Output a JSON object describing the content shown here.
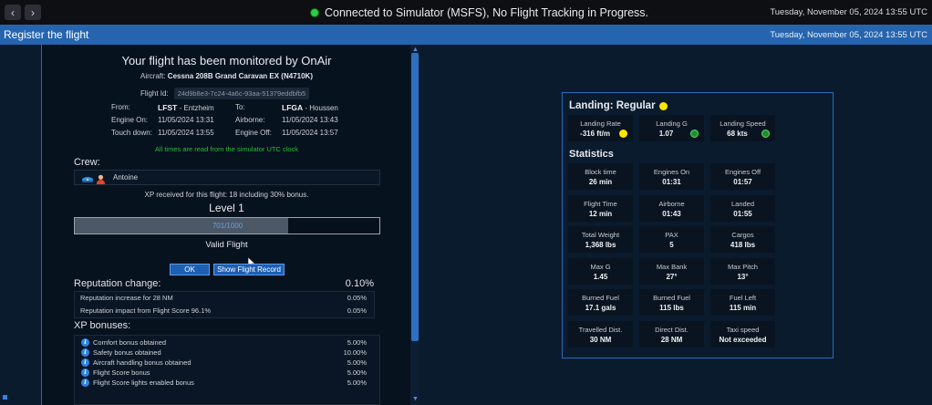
{
  "titlebar": {
    "connection_status": "Connected to Simulator (MSFS), No Flight Tracking in Progress.",
    "datetime": "Tuesday, November 05, 2024 13:55 UTC",
    "status_color": "#2ecc40"
  },
  "header": {
    "title": "Register the flight",
    "datetime": "Tuesday, November 05, 2024 13:55 UTC"
  },
  "report": {
    "heading": "Your flight has been monitored by OnAir",
    "aircraft_label": "Aircraft:",
    "aircraft_value": "Cessna 208B Grand Caravan EX (N4710K)",
    "flight_id_label": "Flight Id:",
    "flight_id_value": "24d9b8e3-7c24-4a6c-93aa-51379eddbfb5",
    "from_label": "From:",
    "from_icao": "LFST",
    "from_name": "- Entzheim",
    "to_label": "To:",
    "to_icao": "LFGA",
    "to_name": "- Houssen",
    "engine_on_label": "Engine On:",
    "engine_on_value": "11/05/2024 13:31",
    "airborne_label": "Airborne:",
    "airborne_value": "11/05/2024 13:43",
    "touchdown_label": "Touch down:",
    "touchdown_value": "11/05/2024 13:55",
    "engine_off_label": "Engine Off:",
    "engine_off_value": "11/05/2024 13:57",
    "utc_note": "All times are read from the simulator UTC clock",
    "crew_label": "Crew:",
    "crew_name": "Antoine",
    "xp_received": "XP received for this flight: 18 including 30% bonus.",
    "level": "Level 1",
    "xp_progress_text": "701/1000",
    "xp_progress_fraction": 0.701,
    "validity": "Valid Flight",
    "ok_button": "OK",
    "show_record_button": "Show Flight Record",
    "reputation_title": "Reputation change:",
    "reputation_total": "0.10%",
    "reputation_rows": [
      {
        "label": "Reputation increase for 28 NM",
        "value": "0.05%"
      },
      {
        "label": "Reputation impact from Flight Score 96.1%",
        "value": "0.05%"
      }
    ],
    "xp_bonus_title": "XP bonuses:",
    "xp_bonuses": [
      {
        "label": "Comfort bonus obtained",
        "value": "5.00%"
      },
      {
        "label": "Safety bonus obtained",
        "value": "10.00%"
      },
      {
        "label": "Aircraft handling bonus obtained",
        "value": "5.00%"
      },
      {
        "label": "Flight Score bonus",
        "value": "5.00%"
      },
      {
        "label": "Flight Score lights enabled bonus",
        "value": "5.00%"
      }
    ]
  },
  "summary": {
    "landing_title": "Landing: Regular",
    "landing_indicator_color": "#ffe600",
    "landing_tiles": [
      {
        "label": "Landing Rate",
        "value": "-316 ft/m",
        "indicator": "yellow"
      },
      {
        "label": "Landing G",
        "value": "1.07",
        "indicator": "green"
      },
      {
        "label": "Landing Speed",
        "value": "68 kts",
        "indicator": "green"
      }
    ],
    "statistics_title": "Statistics",
    "stat_tiles": [
      {
        "label": "Block time",
        "value": "26 min"
      },
      {
        "label": "Engines On",
        "value": "01:31"
      },
      {
        "label": "Engines Off",
        "value": "01:57"
      },
      {
        "label": "Flight Time",
        "value": "12 min"
      },
      {
        "label": "Airborne",
        "value": "01:43"
      },
      {
        "label": "Landed",
        "value": "01:55"
      },
      {
        "label": "Total Weight",
        "value": "1,368 lbs"
      },
      {
        "label": "PAX",
        "value": "5"
      },
      {
        "label": "Cargos",
        "value": "418 lbs"
      },
      {
        "label": "Max G",
        "value": "1.45"
      },
      {
        "label": "Max Bank",
        "value": "27°"
      },
      {
        "label": "Max Pitch",
        "value": "13°"
      },
      {
        "label": "Burned Fuel",
        "value": "17.1 gals"
      },
      {
        "label": "Burned Fuel",
        "value": "115 lbs"
      },
      {
        "label": "Fuel Left",
        "value": "115 min"
      },
      {
        "label": "Travelled Dist.",
        "value": "30 NM"
      },
      {
        "label": "Direct Dist.",
        "value": "28 NM"
      },
      {
        "label": "Taxi speed",
        "value": "Not exceeded"
      }
    ]
  }
}
